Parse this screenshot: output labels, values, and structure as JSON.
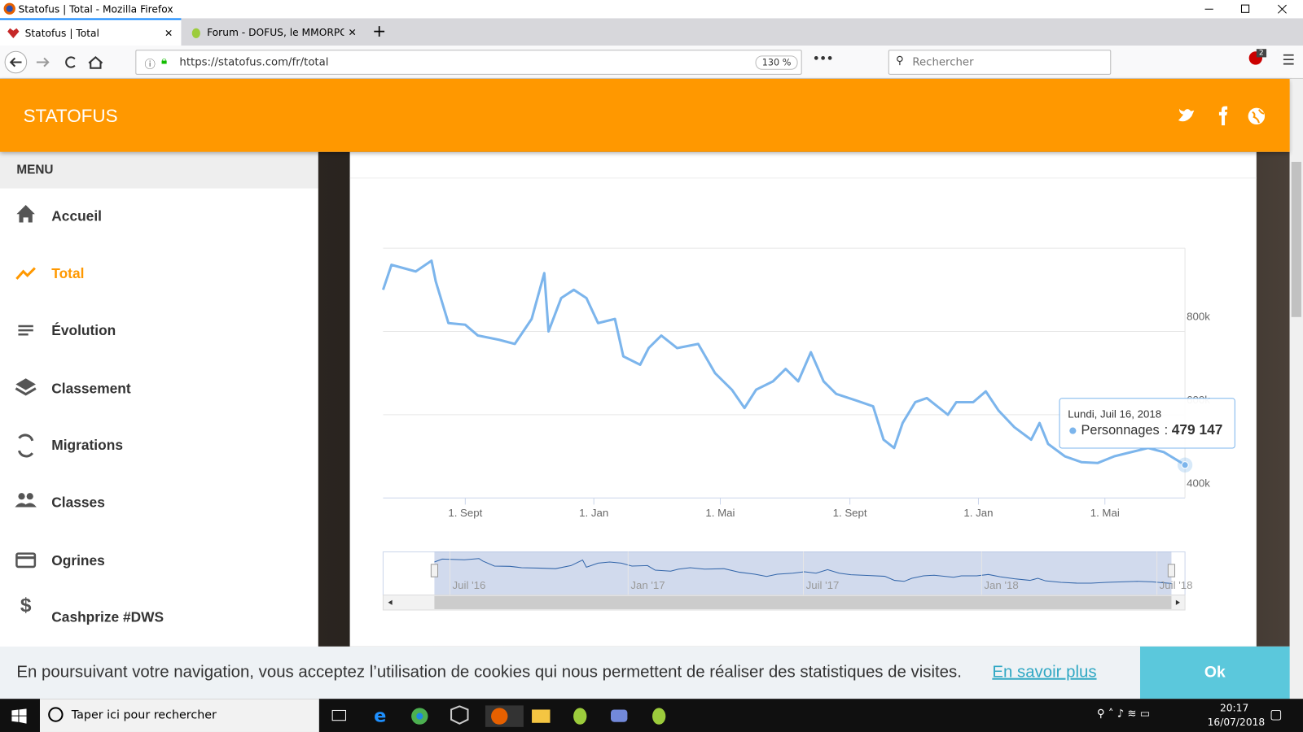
{
  "window": {
    "title": "Statofus | Total - Mozilla Firefox"
  },
  "tabs": [
    "Statofus | Total",
    "Forum - DOFUS, le MMORPG st"
  ],
  "address_bar": {
    "url": "https://statofus.com/fr/total",
    "zoom": "130 %",
    "search_placeholder": "Rechercher",
    "badge": "2"
  },
  "site": {
    "name": "STATOFUS"
  },
  "menu": {
    "title": "MENU",
    "items": [
      "Accueil",
      "Total",
      "Évolution",
      "Classement",
      "Migrations",
      "Classes",
      "Ogrines",
      "Cashprize #DWS"
    ]
  },
  "chart_data": {
    "type": "line",
    "x": [
      "2016-06-15",
      "2016-06-23",
      "2016-07-16",
      "2016-07-31",
      "2016-08-04",
      "2016-08-16",
      "2016-09-01",
      "2016-09-13",
      "2016-10-03",
      "2016-10-18",
      "2016-11-03",
      "2016-11-15",
      "2016-11-19",
      "2016-12-01",
      "2016-12-13",
      "2016-12-25",
      "2017-01-05",
      "2017-01-21",
      "2017-01-29",
      "2017-02-14",
      "2017-02-22",
      "2017-03-06",
      "2017-03-21",
      "2017-04-10",
      "2017-04-26",
      "2017-05-12",
      "2017-05-24",
      "2017-06-04",
      "2017-06-20",
      "2017-07-02",
      "2017-07-14",
      "2017-07-26",
      "2017-08-07",
      "2017-08-19",
      "2017-09-07",
      "2017-09-23",
      "2017-10-03",
      "2017-10-13",
      "2017-10-21",
      "2017-11-02",
      "2017-11-13",
      "2017-12-03",
      "2017-12-11",
      "2017-12-27",
      "2018-01-08",
      "2018-01-20",
      "2018-02-04",
      "2018-02-20",
      "2018-02-28",
      "2018-03-08",
      "2018-03-24",
      "2018-04-09",
      "2018-04-24",
      "2018-05-10",
      "2018-05-26",
      "2018-06-11",
      "2018-06-26",
      "2018-07-16"
    ],
    "series": [
      {
        "name": "Personnages",
        "color": "#7cb5ec",
        "values": [
          900000,
          960000,
          944000,
          970000,
          920000,
          820000,
          816000,
          790000,
          780000,
          770000,
          830000,
          940000,
          800000,
          880000,
          900000,
          880000,
          820000,
          830000,
          740000,
          720000,
          760000,
          790000,
          760000,
          770000,
          700000,
          660000,
          616000,
          660000,
          680000,
          710000,
          680000,
          750000,
          680000,
          650000,
          634000,
          620000,
          540000,
          520000,
          580000,
          630000,
          640000,
          600000,
          630000,
          630000,
          656000,
          610000,
          570000,
          540000,
          580000,
          530000,
          500000,
          486000,
          484000,
          500000,
          510000,
          520000,
          510000,
          479147
        ],
        "value_labels": [
          null,
          null,
          null,
          null,
          null,
          null,
          null,
          null,
          null,
          null,
          null,
          null,
          null,
          null,
          null,
          null,
          null,
          null,
          null,
          null,
          null,
          null,
          null,
          null,
          null,
          null,
          null,
          null,
          null,
          null,
          null,
          null,
          null,
          null,
          null,
          null,
          null,
          null,
          null,
          null,
          null,
          null,
          null,
          null,
          null,
          null,
          null,
          null,
          null,
          null,
          null,
          null,
          null,
          null,
          null,
          null,
          null,
          "479 147"
        ]
      }
    ],
    "xlim": [
      "2016-06-15",
      "2018-07-16"
    ],
    "ylim": [
      400000,
      1000000
    ],
    "xticks": [
      {
        "value": "2016-09-01",
        "label": "1. Sept"
      },
      {
        "value": "2017-01-01",
        "label": "1. Jan"
      },
      {
        "value": "2017-05-01",
        "label": "1. Mai"
      },
      {
        "value": "2017-09-01",
        "label": "1. Sept"
      },
      {
        "value": "2018-01-01",
        "label": "1. Jan"
      },
      {
        "value": "2018-05-01",
        "label": "1. Mai"
      }
    ],
    "yticks": [
      {
        "value": 400000,
        "label": "400k"
      },
      {
        "value": 600000,
        "label": "600k"
      },
      {
        "value": 800000,
        "label": "800k"
      }
    ],
    "grid": true,
    "tooltip": {
      "title": "Lundi, Juil 16, 2018",
      "separator": ":"
    },
    "navigator": {
      "xlim": [
        "2016-04-23",
        "2018-07-30"
      ],
      "ylim": [
        250000,
        1100000
      ],
      "xticks": [
        {
          "value": "2016-07-01",
          "label": "Juil '16"
        },
        {
          "value": "2017-01-01",
          "label": "Jan '17"
        },
        {
          "value": "2017-07-01",
          "label": "Juil '17"
        },
        {
          "value": "2018-01-01",
          "label": "Jan '18"
        },
        {
          "value": "2018-07-01",
          "label": "Juil '18"
        }
      ]
    }
  },
  "cookie_banner": {
    "text": "En poursuivant votre navigation, vous acceptez l’utilisation de cookies qui nous permettent de réaliser des statistiques de visites.",
    "link": "En savoir plus",
    "button": "Ok"
  },
  "taskbar": {
    "search": "Taper ici pour rechercher",
    "time": "20:17",
    "date": "16/07/2018"
  }
}
